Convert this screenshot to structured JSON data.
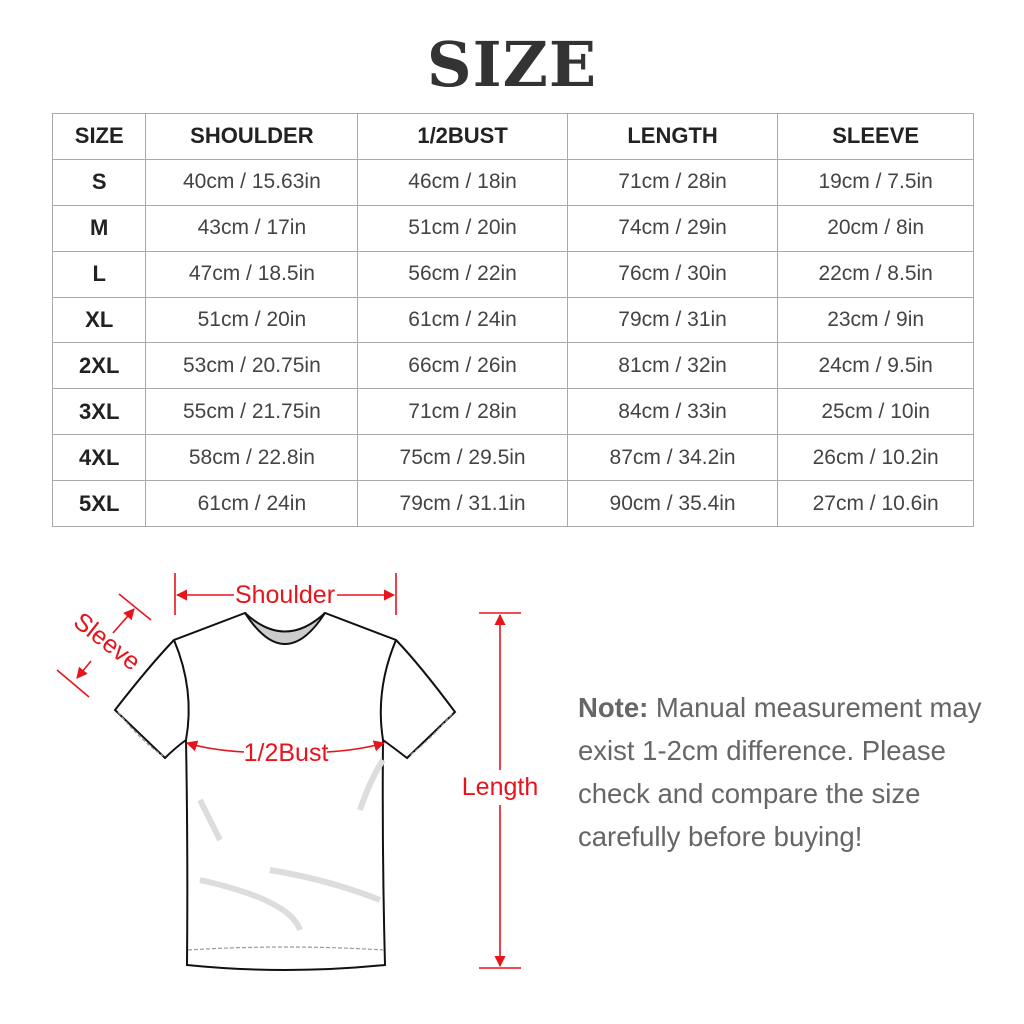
{
  "title": "SIZE",
  "table": {
    "headers": [
      "SIZE",
      "SHOULDER",
      "1/2BUST",
      "LENGTH",
      "SLEEVE"
    ],
    "rows": [
      [
        "S",
        "40cm / 15.63in",
        "46cm / 18in",
        "71cm / 28in",
        "19cm / 7.5in"
      ],
      [
        "M",
        "43cm / 17in",
        "51cm / 20in",
        "74cm / 29in",
        "20cm / 8in"
      ],
      [
        "L",
        "47cm / 18.5in",
        "56cm / 22in",
        "76cm / 30in",
        "22cm / 8.5in"
      ],
      [
        "XL",
        "51cm / 20in",
        "61cm / 24in",
        "79cm / 31in",
        "23cm / 9in"
      ],
      [
        "2XL",
        "53cm / 20.75in",
        "66cm / 26in",
        "81cm / 32in",
        "24cm / 9.5in"
      ],
      [
        "3XL",
        "55cm / 21.75in",
        "71cm / 28in",
        "84cm / 33in",
        "25cm / 10in"
      ],
      [
        "4XL",
        "58cm / 22.8in",
        "75cm / 29.5in",
        "87cm / 34.2in",
        "26cm / 10.2in"
      ],
      [
        "5XL",
        "61cm / 24in",
        "79cm / 31.1in",
        "90cm / 35.4in",
        "27cm / 10.6in"
      ]
    ]
  },
  "diagram": {
    "shoulder": "Shoulder",
    "sleeve": "Sleeve",
    "bust": "1/2Bust",
    "length": "Length",
    "accent_color": "#e8141c"
  },
  "note": {
    "label": "Note:",
    "text": "Manual measurement may exist 1-2cm difference. Please check and compare the size carefully before buying!"
  }
}
